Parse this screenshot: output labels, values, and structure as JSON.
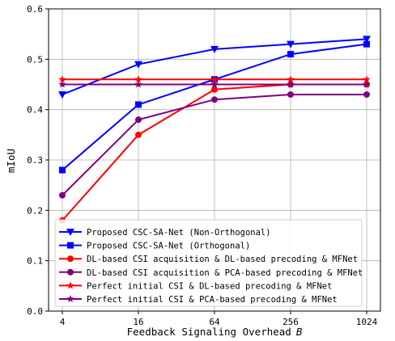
{
  "chart_data": {
    "type": "line",
    "xlabel": "Feedback Signaling Overhead",
    "xlabel_var": "B",
    "ylabel": "mIoU",
    "x": [
      4,
      16,
      64,
      256,
      1024
    ],
    "x_tick_labels": [
      "4",
      "16",
      "64",
      "256",
      "1024"
    ],
    "x_scale": "log",
    "ylim": [
      0,
      0.6
    ],
    "y_ticks": [
      0,
      0.1,
      0.2,
      0.3,
      0.4,
      0.5,
      0.6
    ],
    "y_tick_labels": [
      "0.0",
      "0.1",
      "0.2",
      "0.3",
      "0.4",
      "0.5",
      "0.6"
    ],
    "grid": true,
    "legend_position": "bottom",
    "series": [
      {
        "name": "Proposed CSC-SA-Net (Non-Orthogonal)",
        "color": "#0000ff",
        "marker": "triangle-down",
        "values": [
          0.43,
          0.49,
          0.52,
          0.53,
          0.54
        ]
      },
      {
        "name": "Proposed CSC-SA-Net (Orthogonal)",
        "color": "#0000ff",
        "marker": "square",
        "values": [
          0.28,
          0.41,
          0.46,
          0.51,
          0.53
        ]
      },
      {
        "name": "DL-based CSI acquisition & DL-based precoding & MFNet",
        "color": "#ff0000",
        "marker": "circle",
        "values": [
          0.18,
          0.35,
          0.44,
          0.45,
          0.45
        ]
      },
      {
        "name": "DL-based CSI acquisition & PCA-based precoding & MFNet",
        "color": "#800080",
        "marker": "circle",
        "values": [
          0.23,
          0.38,
          0.42,
          0.43,
          0.43
        ]
      },
      {
        "name": "Perfect initial CSI & DL-based precoding & MFNet",
        "color": "#ff0000",
        "marker": "star",
        "values": [
          0.46,
          0.46,
          0.46,
          0.46,
          0.46
        ]
      },
      {
        "name": "Perfect initial CSI & PCA-based precoding & MFNet",
        "color": "#800080",
        "marker": "star",
        "values": [
          0.45,
          0.45,
          0.45,
          0.45,
          0.45
        ]
      }
    ]
  }
}
